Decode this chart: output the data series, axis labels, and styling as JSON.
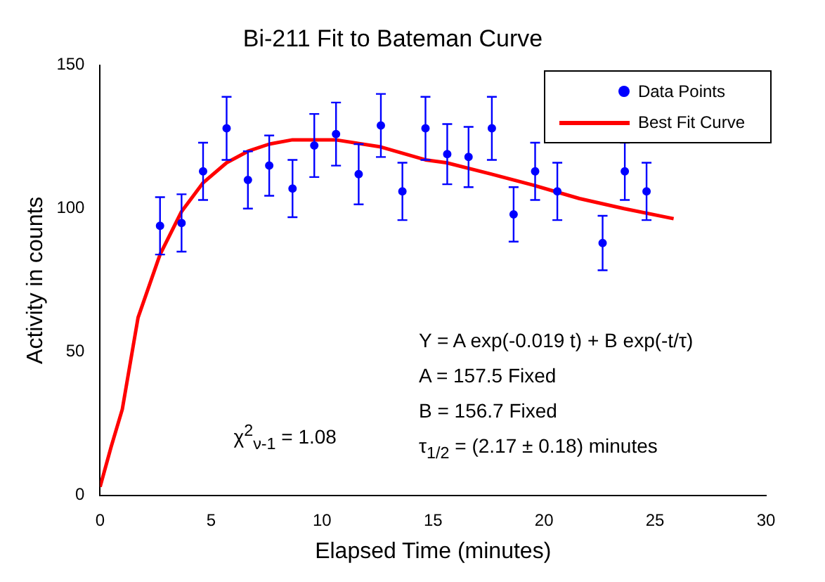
{
  "chart_data": {
    "type": "scatter",
    "title": "Bi-211 Fit to Bateman Curve",
    "xlabel": "Elapsed Time (minutes)",
    "ylabel": "Activity in counts",
    "xlim": [
      0,
      30
    ],
    "ylim": [
      0,
      150
    ],
    "xticks": [
      0,
      5,
      10,
      15,
      20,
      25,
      30
    ],
    "yticks": [
      0,
      50,
      100,
      150
    ],
    "grid": false,
    "legend": "top right",
    "annotations": [
      "Y = A exp(-0.019 t) + B exp(-t/τ)",
      "A = 157.5 Fixed",
      "B = 156.7 Fixed",
      "τ$_{1/2}$ = (2.17 ± 0.18) minutes",
      "χ$^{2}$$_{ν-1}$ = 1.08"
    ],
    "series": [
      {
        "name": "Data Points",
        "type": "scatter",
        "color": "#0000ff",
        "marker": "circle",
        "x": [
          2.7,
          3.67,
          4.64,
          5.7,
          6.66,
          7.62,
          8.67,
          9.65,
          10.63,
          11.65,
          12.65,
          13.62,
          14.66,
          15.64,
          16.6,
          17.65,
          18.63,
          19.6,
          20.6,
          21.6,
          22.64,
          23.64,
          24.62
        ],
        "values": [
          94,
          95,
          113,
          128,
          110,
          115,
          107,
          122,
          126,
          112,
          129,
          106,
          128,
          119,
          118,
          128,
          98,
          113,
          106,
          null,
          88,
          113,
          106
        ],
        "errors": [
          10,
          10,
          10,
          11,
          10,
          10.5,
          10,
          11,
          11,
          10.5,
          11,
          10,
          11,
          10.5,
          10.5,
          11,
          9.5,
          10,
          10,
          null,
          9.5,
          10,
          10
        ]
      },
      {
        "name": "Best Fit Curve",
        "type": "line",
        "color": "#ff0000",
        "marker": "none",
        "line_style": "solid",
        "x": [
          0,
          0.5,
          1,
          1.71,
          2.7,
          3.67,
          4.64,
          5.7,
          6.66,
          7.62,
          8.67,
          10.6,
          12.65,
          14.66,
          15.6,
          17.65,
          19.6,
          21.6,
          23.6,
          25.84
        ],
        "values": [
          3,
          17,
          30,
          62,
          84,
          99,
          109,
          116,
          120,
          122.5,
          124,
          124,
          121.5,
          117,
          116,
          112,
          108,
          103.5,
          100,
          96.5
        ]
      }
    ]
  }
}
